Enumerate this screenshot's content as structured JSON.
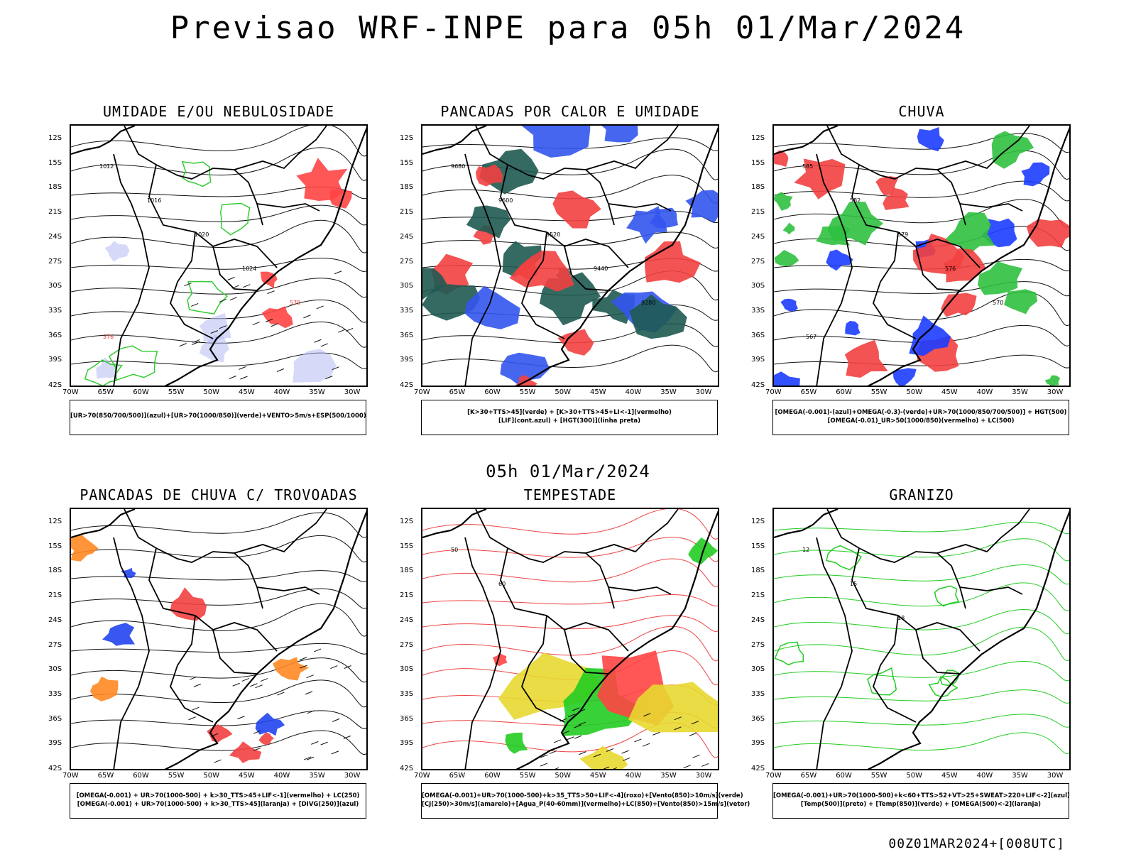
{
  "title": "Previsao WRF-INPE  para 05h 01/Mar/2024",
  "subtitle": "05h 01/Mar/2024",
  "footer": "00Z01MAR2024+[008UTC]",
  "lat_labels": [
    "12S",
    "15S",
    "18S",
    "21S",
    "24S",
    "27S",
    "30S",
    "33S",
    "36S",
    "39S",
    "42S"
  ],
  "lon_labels": [
    "70W",
    "65W",
    "60W",
    "55W",
    "50W",
    "45W",
    "40W",
    "35W",
    "30W"
  ],
  "panels": [
    {
      "title": "UMIDADE E/OU NEBULOSIDADE",
      "caption": [
        "[UR>70(850/700/500)](azul)+[UR>70(1000/850)](verde)+VENTO>5m/s+ESP(500/1000)"
      ],
      "fill_colors": [
        "#b7b9f3",
        "#33cc33",
        "#ff4444"
      ],
      "contour_labels": [
        "1012",
        "1016",
        "1020",
        "1024",
        "570",
        "576"
      ]
    },
    {
      "title": "PANCADAS POR CALOR E UMIDADE",
      "caption": [
        "[K>30+TTS>45](verde) + [K>30+TTS>45+LI<-1](vermelho)",
        "[LIF](cont.azul) + [HGT(300)](linha preta)"
      ],
      "fill_colors": [
        "#f24040",
        "#1f5a52",
        "#3355ee"
      ],
      "contour_labels": [
        "9680",
        "9600",
        "9520",
        "9440",
        "9280"
      ]
    },
    {
      "title": "CHUVA",
      "caption": [
        "[OMEGA(-0.001)-(azul)+OMEGA(-0.3)-(verde)+UR>70(1000/850/700/500)] + HGT(500)",
        "[OMEGA(-0.01)_UR>50(1000/850)(vermelho) + LC(500)"
      ],
      "fill_colors": [
        "#f24040",
        "#1d3dff",
        "#30c040"
      ],
      "contour_labels": [
        "585",
        "582",
        "579",
        "576",
        "570",
        "567"
      ]
    },
    {
      "title": "PANCADAS DE CHUVA C/ TROVOADAS",
      "caption": [
        "[OMEGA(-0.001) + UR>70(1000-500) + k>30_TTS>45+LIF<-1](vermelho) + LC(250)",
        "[OMEGA(-0.001) + UR>70(1000-500) + k>30_TTS>45](laranja) + [DIVG(250)](azul)"
      ],
      "fill_colors": [
        "#f24040",
        "#ff8822",
        "#2244ee"
      ],
      "contour_labels": []
    },
    {
      "title": "TEMPESTADE",
      "caption": [
        "[OMEGA(-0.001)+UR>70(1000-500)+k>35_TTS>50+LIF<-4](roxo)+[Vento(850)>10m/s](verde)",
        "[CJ(250)>30m/s](amarelo)+[Agua_P(40-60mm)](vermelho)+LC(850)+[Vento(850)>15m/s](vetor)"
      ],
      "fill_colors": [
        "#e8d830",
        "#22cc22",
        "#ff4444"
      ],
      "contour_labels": [
        "50",
        "60"
      ]
    },
    {
      "title": "GRANIZO",
      "caption": [
        "[OMEGA(-0.001)+UR>70(1000-500)+k<60+TTS>52+VT>25+SWEAT>220+LIF<-2](azul)",
        "[Temp(500)](preto) + [Temp(850)](verde) + [OMEGA(500)<-2](laranja)"
      ],
      "fill_colors": [
        "#22cc22",
        "#000000",
        "#ff8822"
      ],
      "contour_labels": [
        "12",
        "15",
        "18"
      ]
    }
  ]
}
